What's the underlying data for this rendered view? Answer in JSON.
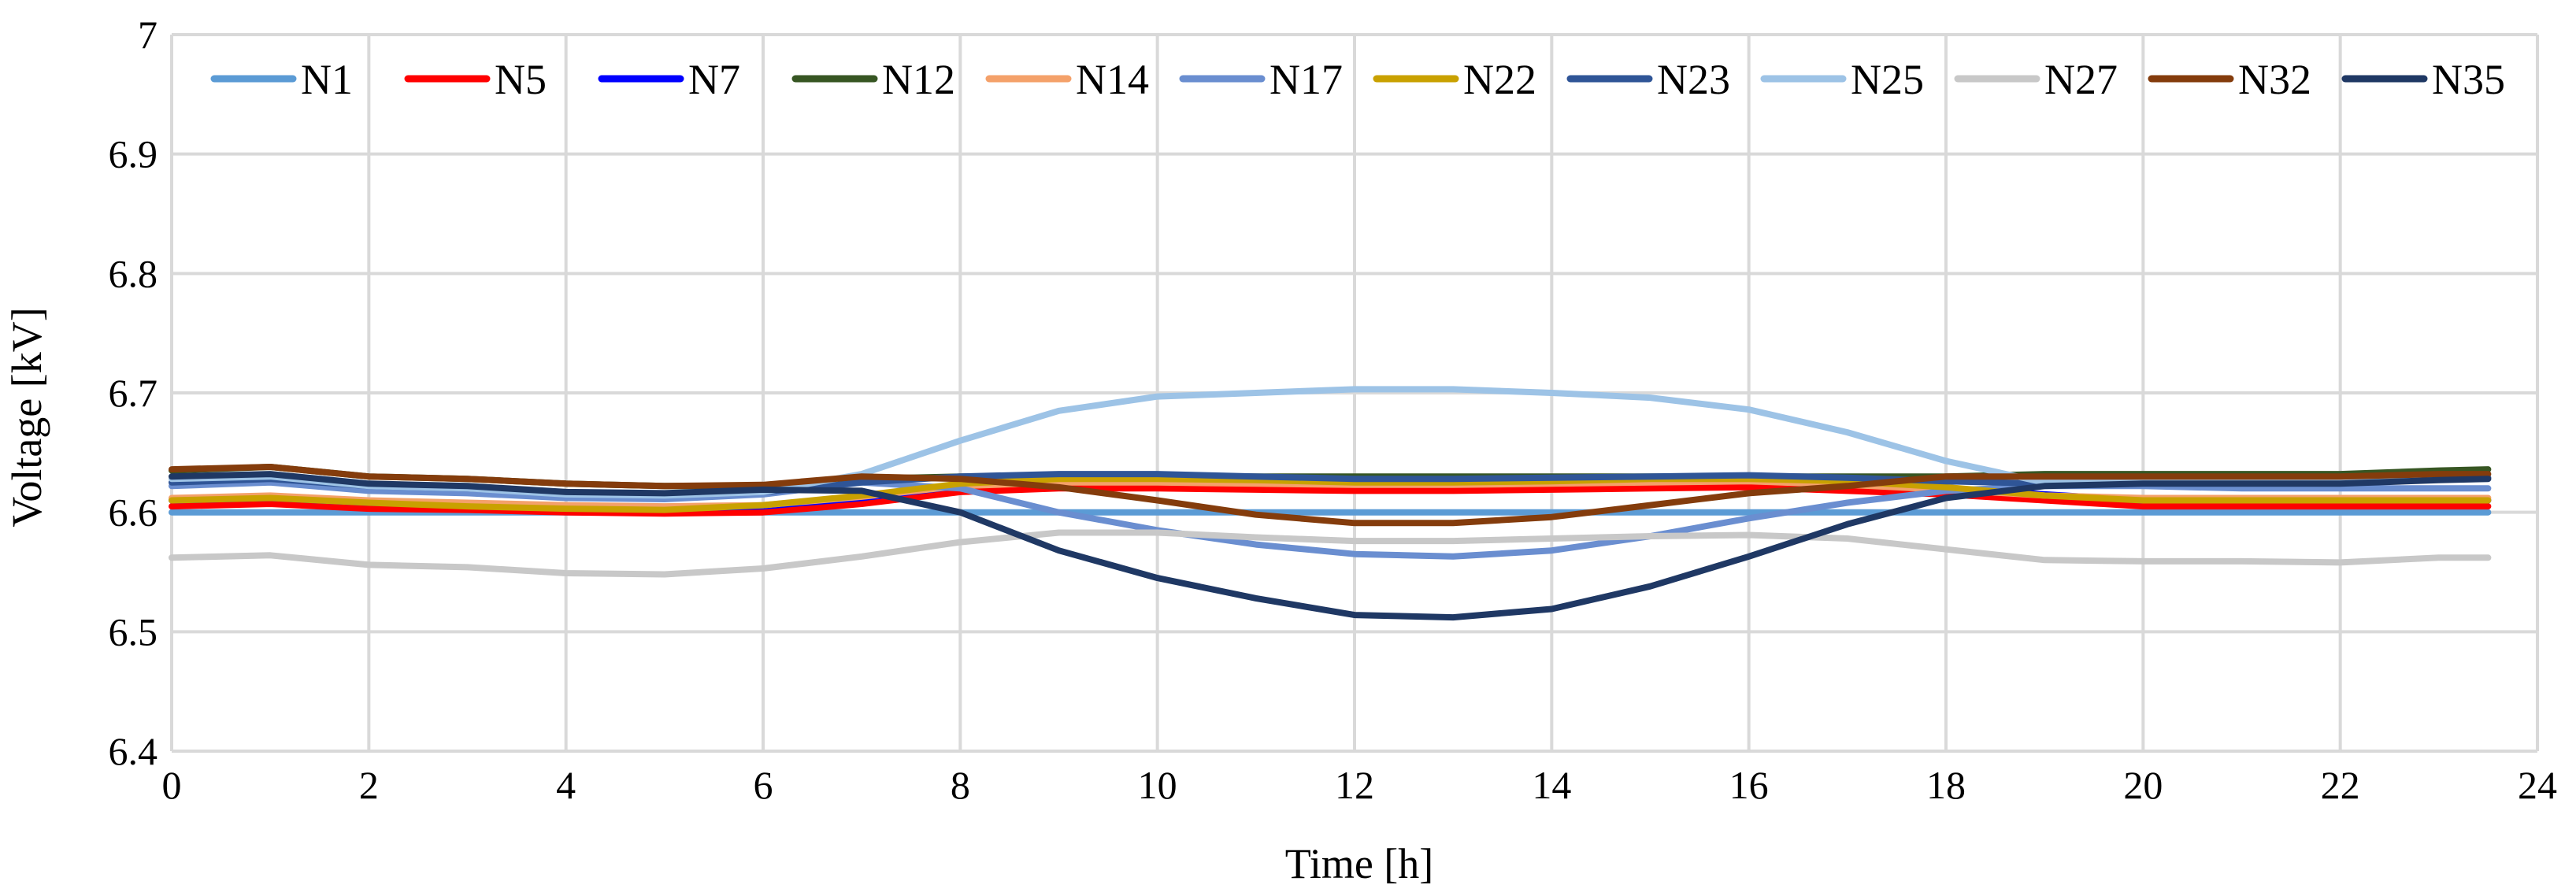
{
  "chart_data": {
    "type": "line",
    "title": "",
    "xlabel": "Time [h]",
    "ylabel": "Voltage [kV]",
    "xlim": [
      0,
      24
    ],
    "ylim": [
      6.4,
      7.0
    ],
    "x_ticks": [
      0,
      2,
      4,
      6,
      8,
      10,
      12,
      14,
      16,
      18,
      20,
      22,
      24
    ],
    "y_ticks": [
      6.4,
      6.5,
      6.6,
      6.7,
      6.8,
      6.9,
      7.0
    ],
    "x_tick_labels": [
      "0",
      "2",
      "4",
      "6",
      "8",
      "10",
      "12",
      "14",
      "16",
      "18",
      "20",
      "22",
      "24"
    ],
    "y_tick_labels": [
      "6.4",
      "6.5",
      "6.6",
      "6.7",
      "6.8",
      "6.9",
      "7"
    ],
    "grid": true,
    "legend_position": "top",
    "x": [
      0,
      1,
      2,
      3,
      4,
      5,
      6,
      7,
      8,
      9,
      10,
      11,
      12,
      13,
      14,
      15,
      16,
      17,
      18,
      19,
      20,
      21,
      22,
      23,
      23.5
    ],
    "series": [
      {
        "name": "N1",
        "color": "#5b9bd5",
        "values": [
          6.6,
          6.6,
          6.6,
          6.6,
          6.6,
          6.6,
          6.6,
          6.6,
          6.6,
          6.6,
          6.6,
          6.6,
          6.6,
          6.6,
          6.6,
          6.6,
          6.6,
          6.6,
          6.6,
          6.6,
          6.6,
          6.6,
          6.6,
          6.6,
          6.6
        ]
      },
      {
        "name": "N5",
        "color": "#ff0000",
        "values": [
          6.605,
          6.607,
          6.603,
          6.602,
          6.6,
          6.599,
          6.6,
          6.607,
          6.617,
          6.62,
          6.62,
          6.619,
          6.618,
          6.618,
          6.619,
          6.62,
          6.621,
          6.618,
          6.615,
          6.61,
          6.605,
          6.605,
          6.605,
          6.605,
          6.605
        ]
      },
      {
        "name": "N7",
        "color": "#0000ff",
        "values": [
          6.61,
          6.612,
          6.608,
          6.606,
          6.604,
          6.603,
          6.605,
          6.612,
          6.622,
          6.626,
          6.626,
          6.625,
          6.624,
          6.624,
          6.625,
          6.626,
          6.627,
          6.624,
          6.62,
          6.615,
          6.61,
          6.61,
          6.61,
          6.61,
          6.61
        ]
      },
      {
        "name": "N12",
        "color": "#375623",
        "values": [
          6.635,
          6.638,
          6.63,
          6.628,
          6.624,
          6.622,
          6.622,
          6.628,
          6.63,
          6.63,
          6.63,
          6.63,
          6.63,
          6.63,
          6.63,
          6.63,
          6.63,
          6.63,
          6.63,
          6.632,
          6.632,
          6.632,
          6.632,
          6.635,
          6.636
        ]
      },
      {
        "name": "N14",
        "color": "#f4a16a",
        "values": [
          6.612,
          6.614,
          6.61,
          6.608,
          6.606,
          6.605,
          6.606,
          6.613,
          6.622,
          6.625,
          6.625,
          6.624,
          6.623,
          6.623,
          6.624,
          6.625,
          6.626,
          6.623,
          6.619,
          6.614,
          6.612,
          6.612,
          6.612,
          6.612,
          6.612
        ]
      },
      {
        "name": "N17",
        "color": "#6a8ed0",
        "values": [
          6.622,
          6.625,
          6.618,
          6.616,
          6.612,
          6.611,
          6.615,
          6.625,
          6.62,
          6.6,
          6.585,
          6.573,
          6.565,
          6.563,
          6.568,
          6.58,
          6.595,
          6.608,
          6.618,
          6.622,
          6.622,
          6.62,
          6.62,
          6.62,
          6.62
        ]
      },
      {
        "name": "N22",
        "color": "#c9a100",
        "values": [
          6.61,
          6.612,
          6.608,
          6.605,
          6.603,
          6.602,
          6.606,
          6.614,
          6.624,
          6.628,
          6.628,
          6.627,
          6.625,
          6.625,
          6.626,
          6.628,
          6.628,
          6.626,
          6.621,
          6.614,
          6.61,
          6.61,
          6.61,
          6.61,
          6.61
        ]
      },
      {
        "name": "N23",
        "color": "#2f5597",
        "values": [
          6.625,
          6.628,
          6.622,
          6.62,
          6.616,
          6.615,
          6.617,
          6.625,
          6.63,
          6.632,
          6.632,
          6.63,
          6.628,
          6.628,
          6.629,
          6.63,
          6.631,
          6.629,
          6.626,
          6.624,
          6.625,
          6.625,
          6.625,
          6.628,
          6.629
        ]
      },
      {
        "name": "N25",
        "color": "#9dc3e6",
        "values": [
          6.628,
          6.63,
          6.622,
          6.62,
          6.615,
          6.614,
          6.617,
          6.632,
          6.66,
          6.685,
          6.697,
          6.7,
          6.703,
          6.703,
          6.7,
          6.696,
          6.686,
          6.667,
          6.643,
          6.625,
          6.625,
          6.625,
          6.625,
          6.628,
          6.628
        ]
      },
      {
        "name": "N27",
        "color": "#c8c8c8",
        "values": [
          6.562,
          6.564,
          6.556,
          6.554,
          6.549,
          6.548,
          6.553,
          6.563,
          6.575,
          6.583,
          6.583,
          6.579,
          6.576,
          6.576,
          6.578,
          6.58,
          6.581,
          6.578,
          6.569,
          6.56,
          6.559,
          6.559,
          6.558,
          6.562,
          6.562
        ]
      },
      {
        "name": "N32",
        "color": "#843c0c",
        "values": [
          6.636,
          6.638,
          6.63,
          6.628,
          6.624,
          6.622,
          6.623,
          6.63,
          6.628,
          6.621,
          6.61,
          6.598,
          6.591,
          6.591,
          6.596,
          6.606,
          6.616,
          6.622,
          6.63,
          6.63,
          6.63,
          6.63,
          6.63,
          6.632,
          6.632
        ]
      },
      {
        "name": "N35",
        "color": "#1f3864",
        "values": [
          6.63,
          6.632,
          6.624,
          6.622,
          6.617,
          6.616,
          6.619,
          6.618,
          6.6,
          6.568,
          6.545,
          6.528,
          6.514,
          6.512,
          6.519,
          6.538,
          6.563,
          6.59,
          6.612,
          6.622,
          6.624,
          6.624,
          6.624,
          6.627,
          6.628
        ]
      }
    ]
  }
}
